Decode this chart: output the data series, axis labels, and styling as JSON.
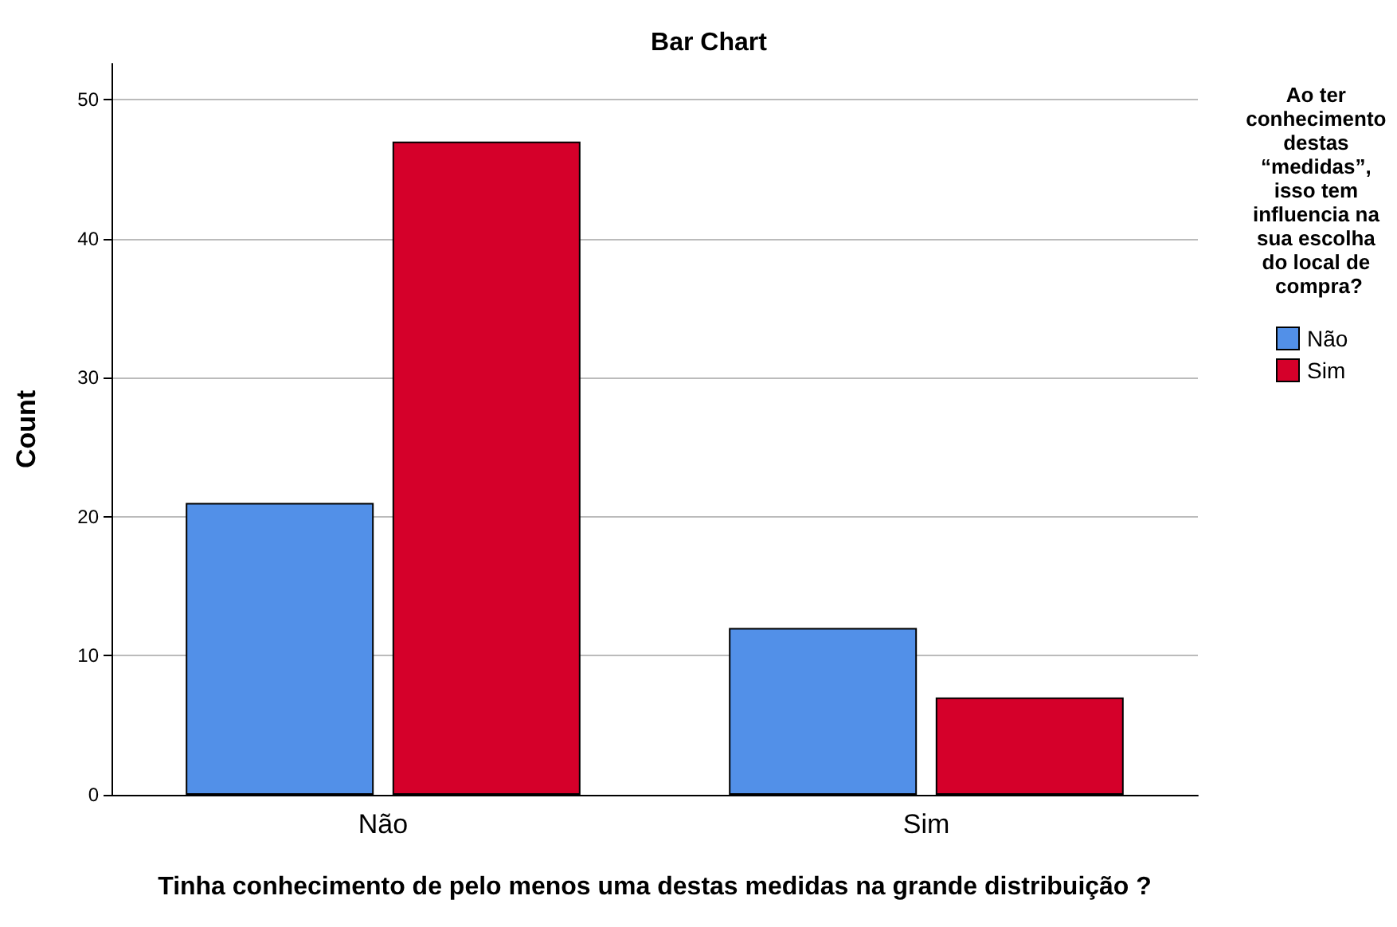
{
  "chart_data": {
    "type": "bar",
    "title": "Bar Chart",
    "xlabel": "Tinha conhecimento de pelo menos uma destas medidas na grande distribuição ?",
    "ylabel": "Count",
    "legend_title": "Ao ter conhecimento destas “medidas”, isso tem influencia na sua escolha do local de compra?",
    "categories": [
      "Não",
      "Sim"
    ],
    "series": [
      {
        "name": "Não",
        "color": "#5290e8",
        "values": [
          21,
          12
        ]
      },
      {
        "name": "Sim",
        "color": "#d5002a",
        "values": [
          47,
          7
        ]
      }
    ],
    "ylim": [
      0,
      52.6
    ],
    "yticks": [
      0,
      10,
      20,
      30,
      40,
      50
    ],
    "grid": "y",
    "legend": "right"
  }
}
